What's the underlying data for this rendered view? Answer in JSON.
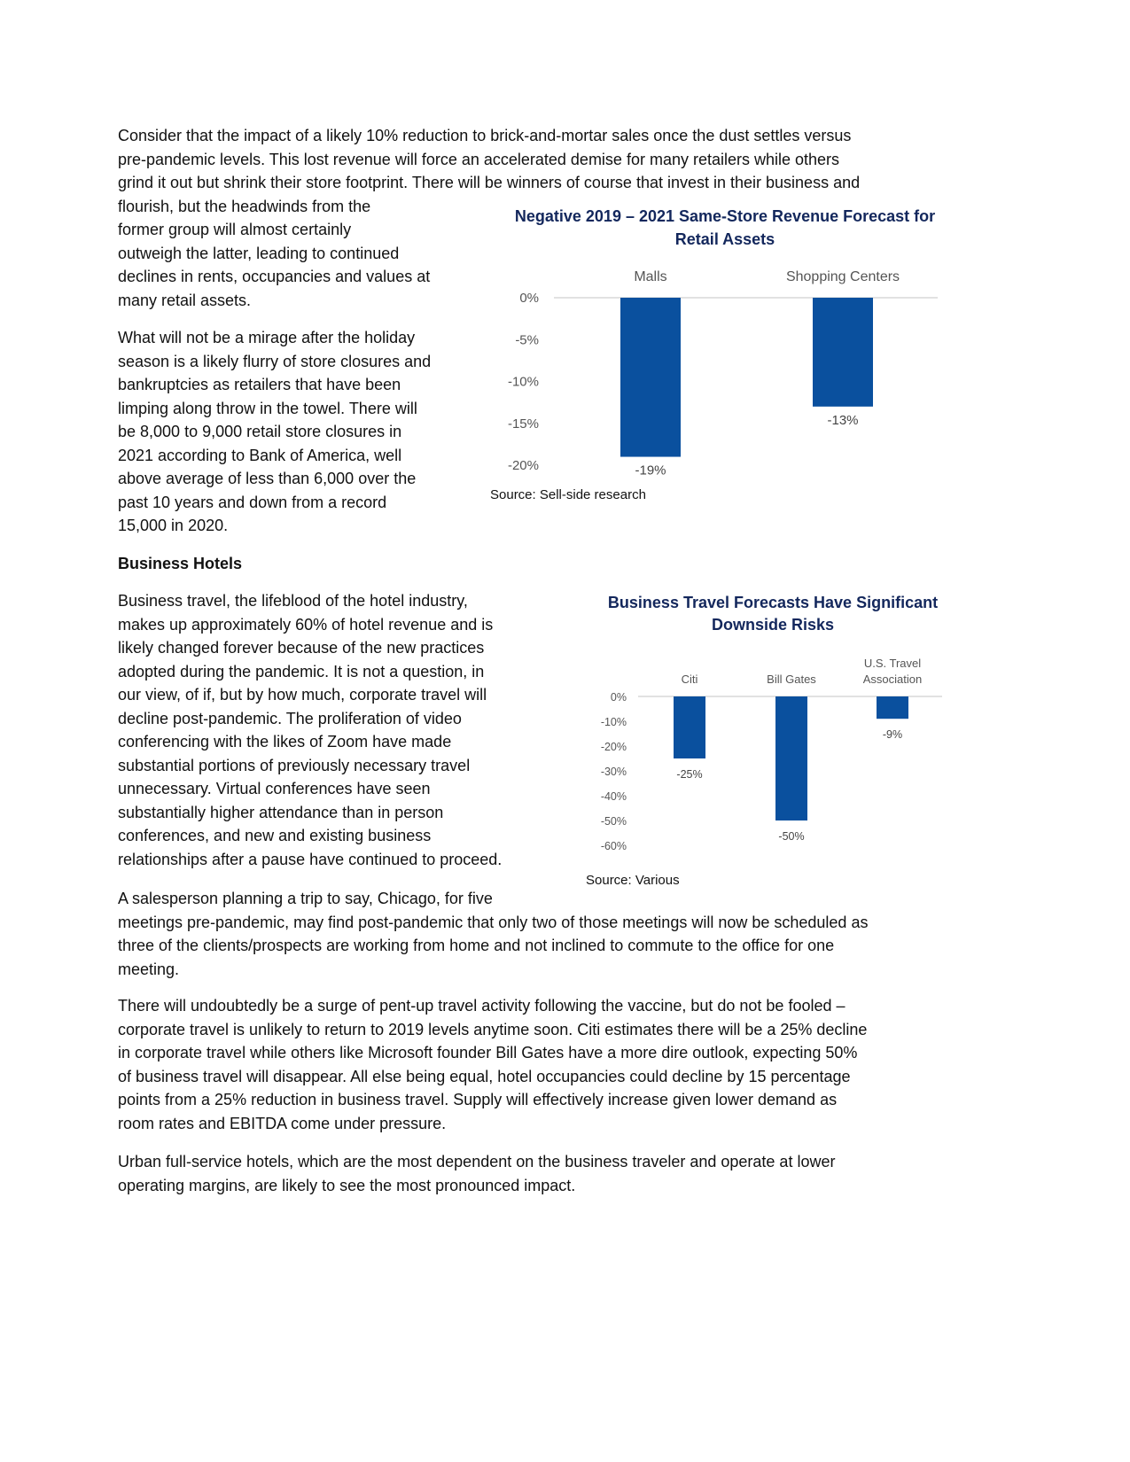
{
  "text": {
    "p1_full": [
      "Consider that the impact of a likely 10% reduction to brick-and-mortar sales once the dust settles versus",
      "pre-pandemic levels. This lost revenue will force an accelerated demise for many retailers while others",
      "grind it out but shrink their store footprint. There will be winners of course that invest in their business and"
    ],
    "p1_col": [
      "flourish, but the headwinds from the",
      "former group will almost certainly",
      "outweigh the latter, leading to continued",
      "declines in rents, occupancies and values at",
      "many retail assets."
    ],
    "p2": [
      "What will not be a mirage after the holiday",
      "season is a likely flurry of store closures and",
      "bankruptcies as retailers that have been",
      "limping along throw in the towel. There will",
      "be 8,000 to 9,000 retail store closures in",
      "2021 according to Bank of America, well",
      "above average of less than 6,000 over the",
      "past 10 years and down from a record",
      "15,000 in 2020."
    ],
    "heading": [
      "Business Hotels"
    ],
    "p3": [
      "Business travel, the lifeblood of the hotel industry,",
      "makes up approximately 60% of hotel revenue and is",
      "likely changed forever because of the new practices",
      "adopted during the pandemic. It is not a question, in",
      "our view, of if, but by how much, corporate travel will",
      "decline post-pandemic. The proliferation of video",
      "conferencing with the likes of Zoom have made",
      "substantial portions of previously necessary travel",
      "unnecessary. Virtual conferences have seen",
      "substantially higher attendance than in person",
      "conferences, and new and existing business",
      "relationships after a pause have continued to proceed."
    ],
    "p4": [
      "A salesperson planning a trip to say, Chicago, for five",
      "meetings pre-pandemic, may find post-pandemic that only two of those meetings will now be scheduled as",
      "three of the clients/prospects are working from home and not inclined to commute to the office for one",
      "meeting."
    ],
    "p5": [
      "There will undoubtedly be a surge of pent-up travel activity following the vaccine, but do not be fooled –",
      "corporate travel is unlikely to return to 2019 levels anytime soon. Citi estimates there will be a 25% decline",
      "in corporate travel while others like Microsoft founder Bill Gates have a more dire outlook, expecting 50%",
      "of business travel will disappear. All else being equal, hotel occupancies could decline by 15 percentage",
      "points from a 25% reduction in business travel. Supply will effectively increase given lower demand as",
      "room rates and EBITDA come under pressure."
    ],
    "p6": [
      "Urban full-service hotels, which are the most dependent on the business traveler and operate at lower",
      "operating margins, are likely to see the most pronounced impact."
    ]
  },
  "colors": {
    "bar": "#0a509e",
    "title": "#13275c",
    "axis": "#d9d9d9"
  },
  "chart_data": [
    {
      "type": "bar",
      "title": [
        "Negative 2019 – 2021 Same-Store Revenue Forecast for",
        "Retail Assets"
      ],
      "categories": [
        [
          "Malls"
        ],
        [
          "Shopping Centers"
        ]
      ],
      "values": [
        -19,
        -13
      ],
      "value_labels": [
        "-19%",
        "-13%"
      ],
      "yticks": [
        0,
        -5,
        -10,
        -15,
        -20
      ],
      "ytick_labels": [
        "0%",
        "-5%",
        "-10%",
        "-15%",
        "-20%"
      ],
      "ylim": [
        -20,
        0
      ],
      "source": "Source: Sell-side research",
      "grid": false
    },
    {
      "type": "bar",
      "title": [
        "Business Travel Forecasts Have Significant",
        "Downside Risks"
      ],
      "categories": [
        [
          "Citi"
        ],
        [
          "Bill Gates"
        ],
        [
          "U.S. Travel",
          "Association"
        ]
      ],
      "values": [
        -25,
        -50,
        -9
      ],
      "value_labels": [
        "-25%",
        "-50%",
        "-9%"
      ],
      "yticks": [
        0,
        -10,
        -20,
        -30,
        -40,
        -50,
        -60
      ],
      "ytick_labels": [
        "0%",
        "-10%",
        "-20%",
        "-30%",
        "-40%",
        "-50%",
        "-60%"
      ],
      "ylim": [
        -60,
        0
      ],
      "source": "Source: Various",
      "grid": false
    }
  ]
}
